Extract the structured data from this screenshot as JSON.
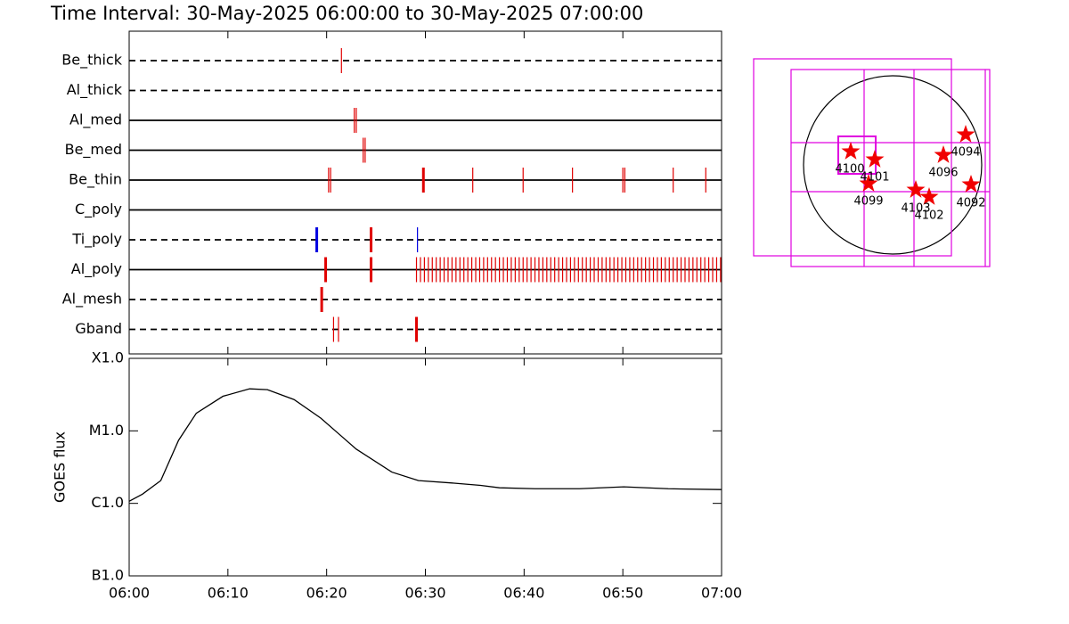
{
  "title": "Time Interval: 30-May-2025 06:00:00 to 30-May-2025 07:00:00",
  "chart_data": [
    {
      "type": "timeline",
      "xlim": [
        0,
        60
      ],
      "rows": [
        {
          "name": "Be_thick",
          "line": "dashed",
          "series": [
            {
              "color": "#e00000",
              "weight": "thin",
              "times": [
                21.5
              ]
            }
          ]
        },
        {
          "name": "Al_thick",
          "line": "dashed",
          "series": []
        },
        {
          "name": "Al_med",
          "line": "solid",
          "series": [
            {
              "color": "#e00000",
              "weight": "thin",
              "times": [
                22.8,
                23.0
              ]
            }
          ]
        },
        {
          "name": "Be_med",
          "line": "solid",
          "series": [
            {
              "color": "#e00000",
              "weight": "thin",
              "times": [
                23.7,
                23.9
              ]
            }
          ]
        },
        {
          "name": "Be_thin",
          "line": "solid",
          "series": [
            {
              "color": "#e00000",
              "weight": "thin",
              "times": [
                20.2,
                20.4,
                34.8,
                39.9,
                44.9,
                50.0,
                50.2,
                55.1,
                58.4
              ]
            },
            {
              "color": "#e00000",
              "weight": "thick",
              "times": [
                29.8
              ]
            }
          ]
        },
        {
          "name": "C_poly",
          "line": "solid",
          "series": []
        },
        {
          "name": "Ti_poly",
          "line": "dashed",
          "series": [
            {
              "color": "#0000e0",
              "weight": "thick",
              "times": [
                19.0
              ]
            },
            {
              "color": "#e00000",
              "weight": "thick",
              "times": [
                24.5
              ]
            },
            {
              "color": "#0000e0",
              "weight": "thin",
              "times": [
                29.2
              ]
            }
          ]
        },
        {
          "name": "Al_poly",
          "line": "solid",
          "series": [
            {
              "color": "#e00000",
              "weight": "thick",
              "times": [
                19.9,
                24.5
              ]
            },
            {
              "color": "#e00000",
              "weight": "thin",
              "times": [
                29.1,
                29.5,
                29.9,
                30.3,
                30.7,
                31.1,
                31.5,
                31.9,
                32.3,
                32.7,
                33.1,
                33.5,
                33.9,
                34.3,
                34.7,
                35.1,
                35.5,
                35.9,
                36.3,
                36.7,
                37.1,
                37.5,
                37.9,
                38.3,
                38.7,
                39.1,
                39.5,
                39.9,
                40.3,
                40.7,
                41.1,
                41.5,
                41.9,
                42.3,
                42.7,
                43.1,
                43.5,
                43.9,
                44.3,
                44.7,
                45.1,
                45.5,
                45.9,
                46.3,
                46.7,
                47.1,
                47.5,
                47.9,
                48.3,
                48.7,
                49.1,
                49.5,
                49.9,
                50.3,
                50.7,
                51.1,
                51.5,
                51.9,
                52.3,
                52.7,
                53.1,
                53.5,
                53.9,
                54.3,
                54.7,
                55.1,
                55.5,
                55.9,
                56.3,
                56.7,
                57.1,
                57.5,
                57.9,
                58.3,
                58.7,
                59.1,
                59.5,
                59.9
              ]
            }
          ]
        },
        {
          "name": "Al_mesh",
          "line": "dashed",
          "series": [
            {
              "color": "#e00000",
              "weight": "thick",
              "times": [
                19.5
              ]
            }
          ]
        },
        {
          "name": "Gband",
          "line": "dashed",
          "series": [
            {
              "color": "#e00000",
              "weight": "thin",
              "times": [
                20.7,
                21.2
              ]
            },
            {
              "color": "#e00000",
              "weight": "thick",
              "times": [
                29.1
              ]
            }
          ]
        }
      ]
    },
    {
      "type": "line",
      "ylabel": "GOES flux",
      "log_y": true,
      "color": "#000000",
      "xlim": [
        0,
        60
      ],
      "xticks": [
        {
          "value": 0,
          "label": "06:00"
        },
        {
          "value": 10,
          "label": "06:10"
        },
        {
          "value": 20,
          "label": "06:20"
        },
        {
          "value": 30,
          "label": "06:30"
        },
        {
          "value": 40,
          "label": "06:40"
        },
        {
          "value": 50,
          "label": "06:50"
        },
        {
          "value": 60,
          "label": "07:00"
        }
      ],
      "ylim": [
        1e-07,
        0.0001
      ],
      "yticks": [
        {
          "value": 1e-07,
          "label": "B1.0"
        },
        {
          "value": 1e-06,
          "label": "C1.0"
        },
        {
          "value": 1e-05,
          "label": "M1.0"
        },
        {
          "value": 0.0001,
          "label": "X1.0"
        }
      ],
      "x": [
        0,
        1.35,
        3.2,
        5,
        6.8,
        9.5,
        12.2,
        14,
        16.7,
        19.4,
        23,
        26.6,
        29.3,
        32.9,
        35.6,
        37.5,
        41.1,
        45.6,
        50.1,
        54.6,
        60
      ],
      "values": [
        1.07e-06,
        1.34e-06,
        2.06e-06,
        7.4e-06,
        1.75e-05,
        3e-05,
        3.8e-05,
        3.7e-05,
        2.7e-05,
        1.5e-05,
        5.6e-06,
        2.7e-06,
        2.06e-06,
        1.9e-06,
        1.77e-06,
        1.64e-06,
        1.59e-06,
        1.59e-06,
        1.69e-06,
        1.59e-06,
        1.55e-06
      ]
    },
    {
      "type": "map",
      "regions": [
        "4100",
        "4101",
        "4099",
        "4096",
        "4094",
        "4103",
        "4102",
        "4092"
      ]
    }
  ]
}
